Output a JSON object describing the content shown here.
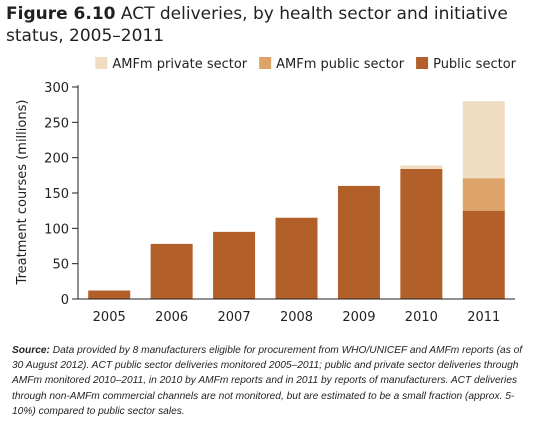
{
  "figure": {
    "label": "Figure 6.10",
    "title": "ACT deliveries, by health sector and initiative status, 2005–2011"
  },
  "chart_data": {
    "type": "bar",
    "stacked": true,
    "categories": [
      "2005",
      "2006",
      "2007",
      "2008",
      "2009",
      "2010",
      "2011"
    ],
    "series": [
      {
        "name": "Public sector",
        "color": "#b25f29",
        "values": [
          12,
          78,
          95,
          115,
          160,
          184,
          125
        ]
      },
      {
        "name": "AMFm public sector",
        "color": "#dda46a",
        "values": [
          0,
          0,
          0,
          0,
          0,
          0,
          46
        ]
      },
      {
        "name": "AMFm private sector",
        "color": "#f0dcc0",
        "values": [
          0,
          0,
          0,
          0,
          0,
          5,
          109
        ]
      }
    ],
    "legend_order": [
      "AMFm private sector",
      "AMFm public sector",
      "Public sector"
    ],
    "ylabel": "Treatment courses (millions)",
    "xlabel": "",
    "ylim": [
      0,
      300
    ],
    "yticks": [
      0,
      50,
      100,
      150,
      200,
      250,
      300
    ],
    "grid": false,
    "legend_position": "top-right"
  },
  "source": {
    "label": "Source:",
    "text": "Data provided by 8 manufacturers eligible for procurement from WHO/UNICEF and AMFm reports (as of 30 August 2012). ACT public sector deliveries monitored 2005–2011; public and private sector deliveries through AMFm monitored  2010–2011, in 2010 by AMFm reports and in 2011 by reports of manufacturers. ACT deliveries through non-AMFm commercial channels are not monitored, but are estimated to be a small fraction (approx. 5-10%) compared to public sector sales."
  }
}
